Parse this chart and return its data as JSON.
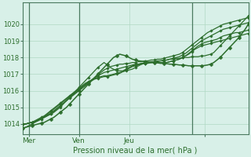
{
  "xlabel": "Pression niveau de la mer( hPa )",
  "background_color": "#d8f0e8",
  "grid_color": "#b0d8c4",
  "line_color": "#2d6e2d",
  "xlim": [
    0,
    72
  ],
  "ylim": [
    1013.4,
    1021.3
  ],
  "yticks": [
    1014,
    1015,
    1016,
    1017,
    1018,
    1019,
    1020
  ],
  "xtick_positions": [
    2,
    18,
    34,
    58
  ],
  "xtick_labels": [
    "Mer",
    "Ven",
    "Jeu",
    ""
  ],
  "day_lines": [
    2,
    18,
    54
  ],
  "n_points": 73,
  "series": [
    [
      1013.7,
      1013.8,
      1013.9,
      1014.0,
      1014.1,
      1014.2,
      1014.3,
      1014.4,
      1014.5,
      1014.6,
      1014.7,
      1014.85,
      1015.0,
      1015.2,
      1015.4,
      1015.6,
      1015.8,
      1016.0,
      1016.2,
      1016.4,
      1016.6,
      1016.8,
      1017.0,
      1017.2,
      1017.4,
      1017.55,
      1017.7,
      1017.55,
      1017.4,
      1017.3,
      1017.2,
      1017.2,
      1017.2,
      1017.3,
      1017.4,
      1017.5,
      1017.55,
      1017.6,
      1017.65,
      1017.7,
      1017.7,
      1017.75,
      1017.75,
      1017.8,
      1017.8,
      1017.85,
      1017.85,
      1017.9,
      1017.9,
      1017.95,
      1017.95,
      1018.0,
      1018.0,
      1018.0,
      1018.05,
      1018.05,
      1018.05,
      1018.1,
      1018.1,
      1018.15,
      1018.2,
      1018.3,
      1018.5,
      1018.7,
      1018.9,
      1019.1,
      1019.3,
      1019.5,
      1019.7,
      1019.9,
      1020.1,
      1020.3,
      1020.5
    ],
    [
      1014.0,
      1014.0,
      1014.05,
      1014.1,
      1014.15,
      1014.2,
      1014.3,
      1014.4,
      1014.5,
      1014.6,
      1014.75,
      1014.9,
      1015.1,
      1015.25,
      1015.4,
      1015.6,
      1015.75,
      1015.9,
      1016.05,
      1016.2,
      1016.35,
      1016.5,
      1016.65,
      1016.8,
      1016.95,
      1017.1,
      1017.25,
      1017.35,
      1017.45,
      1017.5,
      1017.55,
      1017.6,
      1017.6,
      1017.65,
      1017.65,
      1017.7,
      1017.7,
      1017.75,
      1017.75,
      1017.8,
      1017.8,
      1017.85,
      1017.85,
      1017.9,
      1017.9,
      1017.95,
      1018.0,
      1018.05,
      1018.1,
      1018.15,
      1018.2,
      1018.3,
      1018.45,
      1018.6,
      1018.75,
      1018.9,
      1019.05,
      1019.2,
      1019.35,
      1019.5,
      1019.6,
      1019.7,
      1019.8,
      1019.9,
      1020.0,
      1020.05,
      1020.1,
      1020.15,
      1020.2,
      1020.25,
      1020.3,
      1020.35,
      1020.4
    ],
    [
      1014.0,
      1014.0,
      1014.05,
      1014.1,
      1014.15,
      1014.25,
      1014.35,
      1014.45,
      1014.55,
      1014.65,
      1014.8,
      1014.95,
      1015.1,
      1015.25,
      1015.4,
      1015.55,
      1015.7,
      1015.85,
      1016.0,
      1016.15,
      1016.3,
      1016.45,
      1016.6,
      1016.75,
      1016.9,
      1017.0,
      1017.1,
      1017.15,
      1017.2,
      1017.25,
      1017.3,
      1017.35,
      1017.4,
      1017.45,
      1017.5,
      1017.55,
      1017.6,
      1017.6,
      1017.65,
      1017.65,
      1017.7,
      1017.7,
      1017.75,
      1017.75,
      1017.8,
      1017.8,
      1017.85,
      1017.9,
      1017.95,
      1018.0,
      1018.05,
      1018.15,
      1018.25,
      1018.4,
      1018.55,
      1018.7,
      1018.85,
      1019.0,
      1019.1,
      1019.2,
      1019.3,
      1019.4,
      1019.5,
      1019.6,
      1019.7,
      1019.75,
      1019.8,
      1019.85,
      1019.9,
      1019.95,
      1020.0,
      1020.05,
      1020.1
    ],
    [
      1014.0,
      1014.0,
      1014.05,
      1014.1,
      1014.2,
      1014.3,
      1014.4,
      1014.5,
      1014.65,
      1014.8,
      1014.95,
      1015.1,
      1015.25,
      1015.4,
      1015.55,
      1015.7,
      1015.85,
      1016.0,
      1016.15,
      1016.3,
      1016.45,
      1016.55,
      1016.65,
      1016.75,
      1016.8,
      1016.85,
      1016.9,
      1016.9,
      1016.95,
      1017.0,
      1017.05,
      1017.1,
      1017.15,
      1017.2,
      1017.25,
      1017.3,
      1017.4,
      1017.5,
      1017.6,
      1017.65,
      1017.7,
      1017.7,
      1017.7,
      1017.7,
      1017.7,
      1017.7,
      1017.7,
      1017.75,
      1017.8,
      1017.85,
      1017.9,
      1018.0,
      1018.1,
      1018.25,
      1018.4,
      1018.55,
      1018.7,
      1018.8,
      1018.9,
      1018.95,
      1019.0,
      1019.05,
      1019.1,
      1019.2,
      1019.3,
      1019.35,
      1019.4,
      1019.45,
      1019.5,
      1019.5,
      1019.55,
      1019.6,
      1019.65
    ],
    [
      1014.0,
      1014.0,
      1014.05,
      1014.1,
      1014.15,
      1014.25,
      1014.35,
      1014.45,
      1014.6,
      1014.75,
      1014.9,
      1015.05,
      1015.2,
      1015.35,
      1015.5,
      1015.65,
      1015.8,
      1015.95,
      1016.1,
      1016.25,
      1016.4,
      1016.5,
      1016.6,
      1016.7,
      1016.75,
      1016.8,
      1016.85,
      1016.85,
      1016.9,
      1016.95,
      1017.0,
      1017.05,
      1017.15,
      1017.25,
      1017.35,
      1017.45,
      1017.5,
      1017.55,
      1017.6,
      1017.65,
      1017.65,
      1017.7,
      1017.7,
      1017.7,
      1017.7,
      1017.7,
      1017.7,
      1017.75,
      1017.8,
      1017.85,
      1017.9,
      1018.0,
      1018.1,
      1018.2,
      1018.35,
      1018.5,
      1018.6,
      1018.7,
      1018.75,
      1018.8,
      1018.85,
      1018.9,
      1018.95,
      1019.0,
      1019.05,
      1019.1,
      1019.15,
      1019.2,
      1019.25,
      1019.3,
      1019.35,
      1019.4,
      1019.45
    ],
    [
      1013.75,
      1013.8,
      1013.85,
      1013.9,
      1013.95,
      1014.0,
      1014.05,
      1014.1,
      1014.2,
      1014.3,
      1014.4,
      1014.55,
      1014.7,
      1014.85,
      1015.0,
      1015.2,
      1015.4,
      1015.6,
      1015.8,
      1016.0,
      1016.2,
      1016.4,
      1016.6,
      1016.8,
      1017.0,
      1017.2,
      1017.4,
      1017.6,
      1017.8,
      1018.0,
      1018.1,
      1018.2,
      1018.15,
      1018.1,
      1018.0,
      1017.9,
      1017.85,
      1017.8,
      1017.78,
      1017.75,
      1017.73,
      1017.7,
      1017.7,
      1017.68,
      1017.65,
      1017.65,
      1017.63,
      1017.6,
      1017.6,
      1017.58,
      1017.55,
      1017.55,
      1017.53,
      1017.5,
      1017.5,
      1017.5,
      1017.5,
      1017.5,
      1017.52,
      1017.55,
      1017.6,
      1017.7,
      1017.85,
      1018.0,
      1018.2,
      1018.4,
      1018.6,
      1018.8,
      1019.0,
      1019.2,
      1019.45,
      1019.7,
      1020.0
    ]
  ],
  "marker_series": [
    5
  ],
  "marker_step": 3
}
